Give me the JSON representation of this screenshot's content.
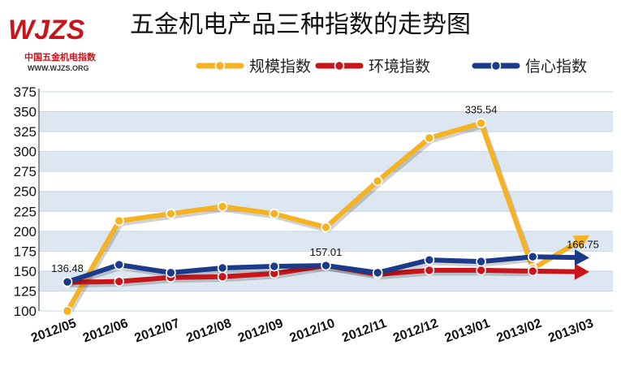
{
  "logo": {
    "main": "WJZS",
    "subtitle": "中国五金机电指数",
    "url": "WWW.WJZS.ORG"
  },
  "chart_data": {
    "type": "line",
    "title": "五金机电产品三种指数的走势图",
    "categories": [
      "2012/05",
      "2012/06",
      "2012/07",
      "2012/08",
      "2012/09",
      "2012/10",
      "2012/11",
      "2012/12",
      "2013/01",
      "2013/02",
      "2013/03"
    ],
    "ylim": [
      100,
      375
    ],
    "yticks": [
      100,
      125,
      150,
      175,
      200,
      225,
      250,
      275,
      300,
      325,
      350,
      375
    ],
    "grid": true,
    "legend_position": "top-right",
    "series": [
      {
        "name": "规模指数",
        "color": "#f5b324",
        "values": [
          100,
          213,
          222,
          231,
          222,
          205,
          263,
          317,
          335.54,
          153,
          195
        ],
        "labels": [
          {
            "index": 8,
            "text": "335.54",
            "pos": "above"
          }
        ]
      },
      {
        "name": "环境指数",
        "color": "#c8151b",
        "values": [
          136,
          137,
          142,
          143,
          147,
          157,
          146,
          151,
          151,
          150,
          149
        ],
        "labels": []
      },
      {
        "name": "信心指数",
        "color": "#1b3a8a",
        "values": [
          136.48,
          158,
          148,
          154,
          156,
          157.01,
          148,
          164,
          162,
          168,
          166.75
        ],
        "labels": [
          {
            "index": 0,
            "text": "136.48",
            "pos": "above"
          },
          {
            "index": 5,
            "text": "157.01",
            "pos": "above"
          },
          {
            "index": 10,
            "text": "166.75",
            "pos": "above"
          }
        ]
      }
    ]
  }
}
